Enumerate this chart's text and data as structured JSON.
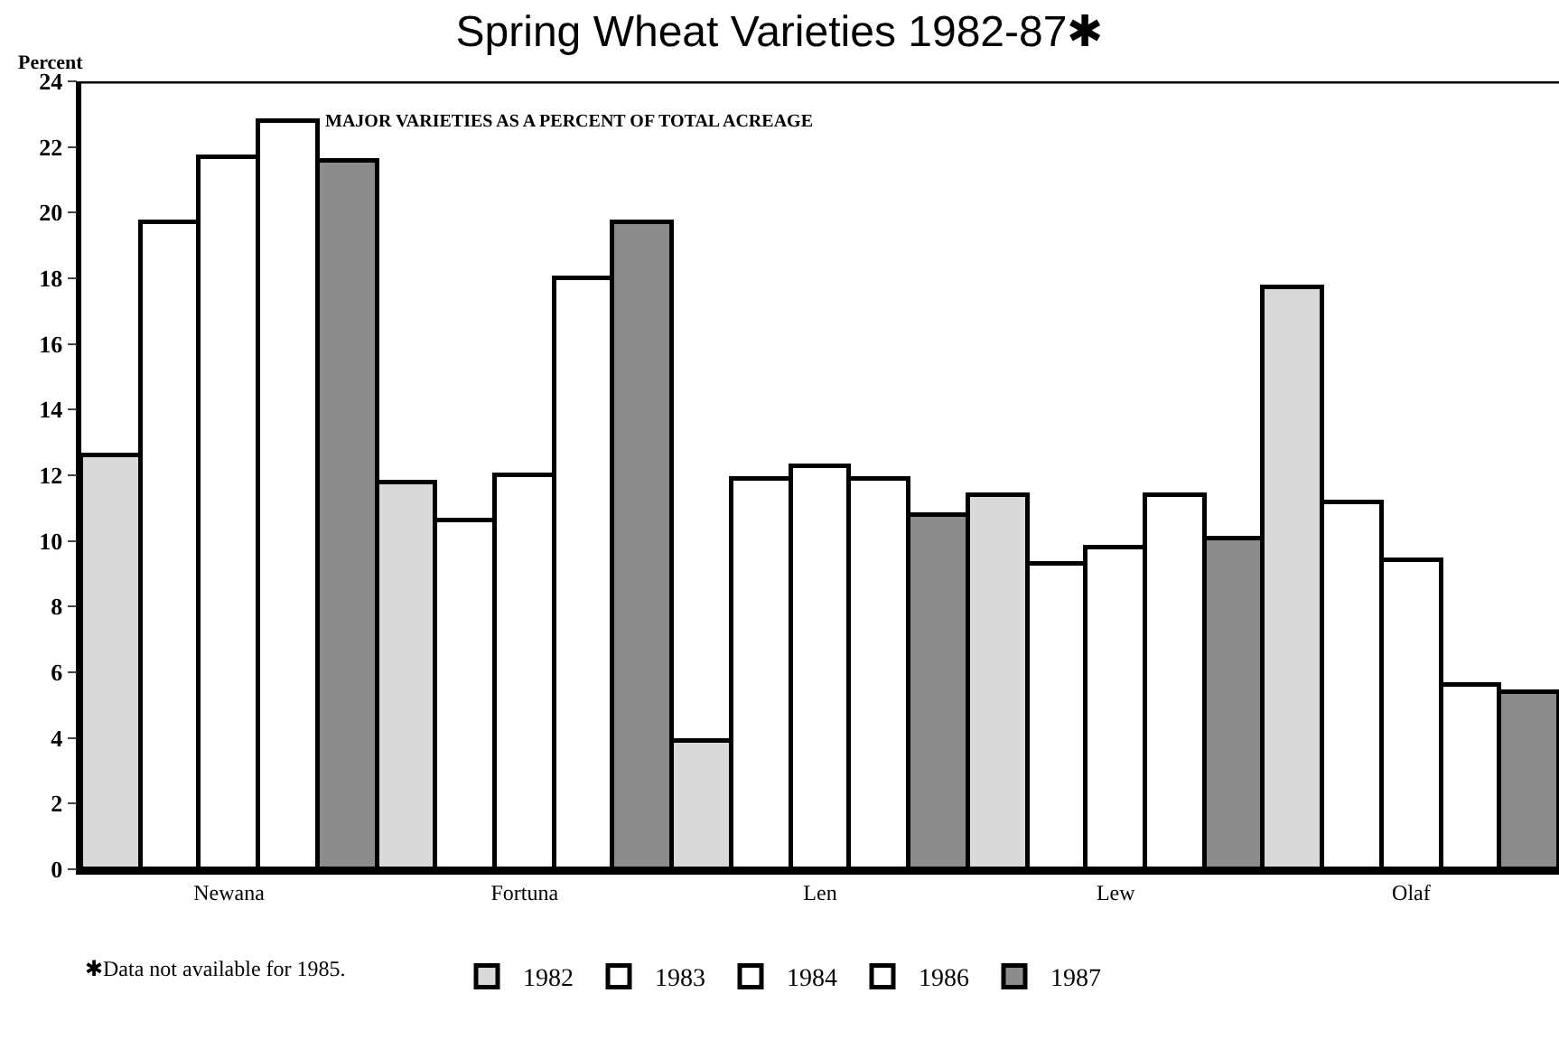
{
  "chart_data": {
    "type": "bar",
    "title": "Spring Wheat Varieties 1982-87✱",
    "subtitle": "MAJOR VARIETIES AS A PERCENT OF TOTAL ACREAGE",
    "ylabel": "Percent",
    "categories": [
      "Newana",
      "Fortuna",
      "Len",
      "Lew",
      "Olaf"
    ],
    "series": [
      {
        "name": "1982",
        "color": "#d9d9d9",
        "values": [
          12.6,
          11.8,
          3.9,
          11.4,
          17.7
        ]
      },
      {
        "name": "1983",
        "color": "#ffffff",
        "values": [
          19.7,
          10.6,
          11.9,
          9.3,
          11.2
        ]
      },
      {
        "name": "1984",
        "color": "#ffffff",
        "values": [
          21.7,
          12.0,
          12.3,
          9.8,
          9.4
        ]
      },
      {
        "name": "1986",
        "color": "#ffffff",
        "values": [
          22.8,
          18.0,
          11.9,
          11.4,
          5.6
        ]
      },
      {
        "name": "1987",
        "color": "#8c8c8c",
        "values": [
          21.6,
          19.7,
          10.8,
          10.1,
          5.4
        ]
      }
    ],
    "ylim": [
      0,
      24
    ],
    "yticks": [
      0,
      2,
      4,
      6,
      8,
      10,
      12,
      14,
      16,
      18,
      20,
      22,
      24
    ],
    "legend": "bottom",
    "annotations": [
      "✱Data not available for 1985."
    ]
  }
}
